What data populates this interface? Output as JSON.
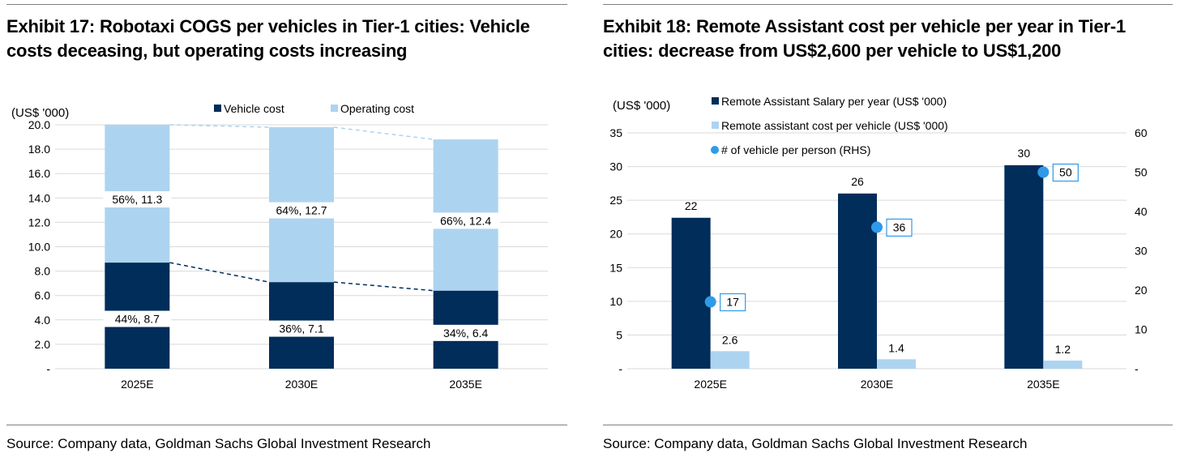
{
  "left": {
    "title": "Exhibit 17: Robotaxi COGS per vehicles in Tier-1 cities: Vehicle costs deceasing, but operating costs increasing",
    "source": "Source: Company data, Goldman Sachs Global Investment Research",
    "colors": {
      "vehicle": "#002d5a",
      "operating": "#acd4f0",
      "grid": "#d9d9d9"
    }
  },
  "right": {
    "title": "Exhibit 18: Remote Assistant cost per vehicle per year in Tier-1 cities: decrease from US$2,600 per vehicle to US$1,200",
    "source": "Source: Company data, Goldman Sachs Global Investment Research",
    "colors": {
      "salary": "#002d5a",
      "cost": "#acd4f0",
      "dot": "#2f9ae8",
      "grid": "#d9d9d9"
    }
  },
  "chart_data": [
    {
      "type": "bar",
      "stacked": true,
      "categories": [
        "2025E",
        "2030E",
        "2035E"
      ],
      "series": [
        {
          "name": "Vehicle cost",
          "values": [
            8.7,
            7.1,
            6.4
          ],
          "labels": [
            "44%,  8.7",
            "36%,  7.1",
            "34%,  6.4"
          ]
        },
        {
          "name": "Operating cost",
          "values": [
            11.3,
            12.7,
            12.4
          ],
          "labels": [
            "56%,  11.3",
            "64%,  12.7",
            "66%,  12.4"
          ]
        }
      ],
      "ylabel": "(US$ '000)",
      "ylim": [
        0,
        20
      ],
      "yticks": [
        "-",
        "2.0",
        "4.0",
        "6.0",
        "8.0",
        "10.0",
        "12.0",
        "14.0",
        "16.0",
        "18.0",
        "20.0"
      ],
      "grid": true,
      "legend": "top",
      "connector_lines": "dashed"
    },
    {
      "type": "bar",
      "categories": [
        "2025E",
        "2030E",
        "2035E"
      ],
      "series": [
        {
          "name": "Remote Assistant Salary per year (US$ '000)",
          "values": [
            22.4,
            26,
            30.2
          ],
          "labels": [
            "22",
            "26",
            "30"
          ]
        },
        {
          "name": "Remote assistant cost per vehicle (US$ '000)",
          "values": [
            2.6,
            1.4,
            1.2
          ],
          "labels": [
            "2.6",
            "1.4",
            "1.2"
          ]
        },
        {
          "name": "# of vehicle per person (RHS)",
          "type": "scatter",
          "axis": "right",
          "values": [
            17,
            36,
            50
          ],
          "labels": [
            "17",
            "36",
            "50"
          ]
        }
      ],
      "ylabel": "(US$ '000)",
      "ylim": [
        0,
        35
      ],
      "yticks": [
        "-",
        "5",
        "10",
        "15",
        "20",
        "25",
        "30",
        "35"
      ],
      "y2lim": [
        0,
        60
      ],
      "y2ticks": [
        "-",
        "10",
        "20",
        "30",
        "40",
        "50",
        "60"
      ],
      "grid": true,
      "legend": "top"
    }
  ]
}
